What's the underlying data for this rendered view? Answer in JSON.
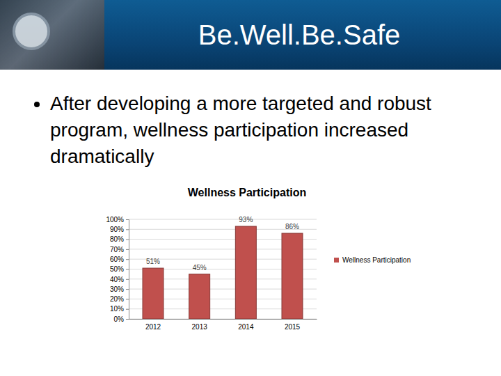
{
  "slide": {
    "title": "Be.Well.Be.Safe",
    "bullets": [
      "After developing a more targeted and robust program, wellness participation increased dramatically"
    ]
  },
  "chart_data": {
    "type": "bar",
    "title": "Wellness Participation",
    "categories": [
      "2012",
      "2013",
      "2014",
      "2015"
    ],
    "series": [
      {
        "name": "Wellness Participation",
        "color": "#c0504d",
        "values": [
          51,
          45,
          93,
          86
        ],
        "value_labels": [
          "51%",
          "45%",
          "93%",
          "86%"
        ]
      }
    ],
    "ylim": [
      0,
      100
    ],
    "yticks": [
      {
        "value": 0,
        "label": "0%"
      },
      {
        "value": 10,
        "label": "10%"
      },
      {
        "value": 20,
        "label": "20%"
      },
      {
        "value": 30,
        "label": "30%"
      },
      {
        "value": 40,
        "label": "40%"
      },
      {
        "value": 50,
        "label": "50%"
      },
      {
        "value": 60,
        "label": "60%"
      },
      {
        "value": 70,
        "label": "70%"
      },
      {
        "value": 80,
        "label": "80%"
      },
      {
        "value": 90,
        "label": "90%"
      },
      {
        "value": 100,
        "label": "100%"
      }
    ],
    "grid": true,
    "legend": "right",
    "data_labels": true
  }
}
